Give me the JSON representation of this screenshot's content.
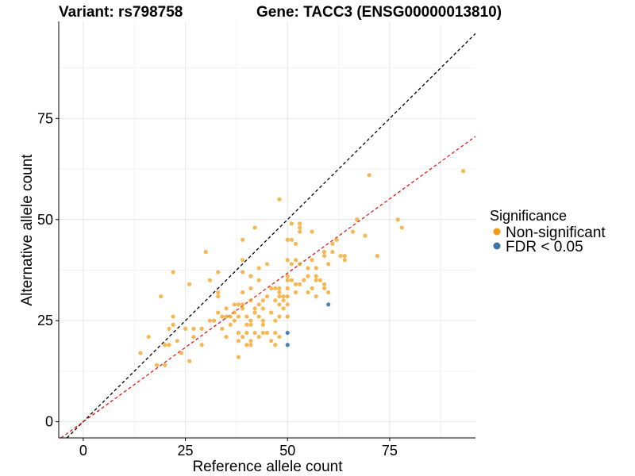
{
  "titles": {
    "variant": "Variant: rs798758",
    "gene": "Gene: TACC3 (ENSG00000013810)"
  },
  "legend": {
    "title": "Significance",
    "items": [
      {
        "label": "Non-significant",
        "color": "#f39c12"
      },
      {
        "label": "FDR < 0.05",
        "color": "#3d74a8"
      }
    ]
  },
  "chart_data": {
    "type": "scatter",
    "xlabel": "Reference allele count",
    "ylabel": "Alternative allele count",
    "xlim": [
      -6,
      96
    ],
    "ylim": [
      -4,
      99
    ],
    "xticks": [
      0,
      25,
      50,
      75
    ],
    "yticks": [
      0,
      25,
      50,
      75
    ],
    "grid": true,
    "legend_position": "right",
    "reference_lines": [
      {
        "name": "identity",
        "slope": 1,
        "intercept": 0,
        "color": "#000000",
        "style": "dashed"
      },
      {
        "name": "fit",
        "slope": 0.735,
        "intercept": 0,
        "color": "#e41a1c",
        "style": "dashed"
      }
    ],
    "series": [
      {
        "name": "Non-significant",
        "color": "#f39c12",
        "points": [
          [
            14,
            17
          ],
          [
            16,
            21
          ],
          [
            18,
            14
          ],
          [
            19,
            31
          ],
          [
            20,
            19
          ],
          [
            21,
            19
          ],
          [
            20,
            14
          ],
          [
            21,
            23
          ],
          [
            22,
            24
          ],
          [
            22,
            37
          ],
          [
            22,
            26
          ],
          [
            23,
            20
          ],
          [
            24,
            17
          ],
          [
            25,
            23
          ],
          [
            26,
            34
          ],
          [
            26,
            15
          ],
          [
            27,
            23
          ],
          [
            27,
            21
          ],
          [
            29,
            23
          ],
          [
            29,
            19
          ],
          [
            30,
            42
          ],
          [
            31,
            25
          ],
          [
            31,
            35
          ],
          [
            32,
            25
          ],
          [
            33,
            27
          ],
          [
            33,
            31
          ],
          [
            33,
            32
          ],
          [
            33,
            37
          ],
          [
            34,
            23
          ],
          [
            34,
            26
          ],
          [
            35,
            28
          ],
          [
            35,
            26
          ],
          [
            35,
            21
          ],
          [
            36,
            24
          ],
          [
            36,
            26
          ],
          [
            37,
            29
          ],
          [
            37,
            27
          ],
          [
            37,
            25
          ],
          [
            38,
            26
          ],
          [
            38,
            29
          ],
          [
            38,
            20
          ],
          [
            38,
            22
          ],
          [
            38,
            16
          ],
          [
            39,
            21
          ],
          [
            39,
            45
          ],
          [
            39,
            37
          ],
          [
            39,
            40
          ],
          [
            39,
            28
          ],
          [
            39,
            29
          ],
          [
            39,
            32
          ],
          [
            40,
            22
          ],
          [
            40,
            19
          ],
          [
            40,
            24
          ],
          [
            40,
            26
          ],
          [
            41,
            30
          ],
          [
            41,
            36
          ],
          [
            41,
            33
          ],
          [
            41,
            25
          ],
          [
            41,
            24
          ],
          [
            41,
            19
          ],
          [
            41,
            20
          ],
          [
            42,
            48
          ],
          [
            42,
            27
          ],
          [
            42,
            22
          ],
          [
            42,
            28
          ],
          [
            43,
            26
          ],
          [
            43,
            21
          ],
          [
            43,
            29
          ],
          [
            43,
            38
          ],
          [
            43,
            35
          ],
          [
            44,
            22
          ],
          [
            44,
            25
          ],
          [
            44,
            30
          ],
          [
            44,
            28
          ],
          [
            44,
            24
          ],
          [
            45,
            22
          ],
          [
            45,
            39
          ],
          [
            45,
            31
          ],
          [
            46,
            33
          ],
          [
            46,
            27
          ],
          [
            46,
            20
          ],
          [
            47,
            19
          ],
          [
            47,
            25
          ],
          [
            47,
            22
          ],
          [
            47,
            30
          ],
          [
            47,
            33
          ],
          [
            48,
            55
          ],
          [
            48,
            32
          ],
          [
            48,
            29
          ],
          [
            48,
            33
          ],
          [
            48,
            31
          ],
          [
            48,
            26
          ],
          [
            48,
            21
          ],
          [
            49,
            31
          ],
          [
            49,
            30
          ],
          [
            49,
            28
          ],
          [
            50,
            45
          ],
          [
            50,
            40
          ],
          [
            50,
            36
          ],
          [
            50,
            35
          ],
          [
            50,
            31
          ],
          [
            50,
            33
          ],
          [
            50,
            29
          ],
          [
            50,
            26
          ],
          [
            51,
            49
          ],
          [
            51,
            45
          ],
          [
            51,
            39
          ],
          [
            51,
            35
          ],
          [
            52,
            44
          ],
          [
            52,
            32
          ],
          [
            52,
            34
          ],
          [
            52,
            40
          ],
          [
            53,
            49
          ],
          [
            53,
            48
          ],
          [
            53,
            47
          ],
          [
            53,
            39
          ],
          [
            53,
            34
          ],
          [
            54,
            35
          ],
          [
            55,
            38
          ],
          [
            55,
            32
          ],
          [
            55,
            36
          ],
          [
            56,
            47
          ],
          [
            56,
            40
          ],
          [
            56,
            33
          ],
          [
            57,
            38
          ],
          [
            57,
            36
          ],
          [
            57,
            35
          ],
          [
            57,
            31
          ],
          [
            58,
            35
          ],
          [
            59,
            42
          ],
          [
            59,
            34
          ],
          [
            59,
            33
          ],
          [
            59,
            41
          ],
          [
            60,
            39
          ],
          [
            60,
            32
          ],
          [
            61,
            44
          ],
          [
            61,
            42
          ],
          [
            62,
            45
          ],
          [
            63,
            41
          ],
          [
            64,
            41
          ],
          [
            64,
            40
          ],
          [
            66,
            47
          ],
          [
            67,
            50
          ],
          [
            69,
            46
          ],
          [
            70,
            61
          ],
          [
            72,
            41
          ],
          [
            77,
            50
          ],
          [
            78,
            48
          ],
          [
            93,
            62
          ]
        ]
      },
      {
        "name": "FDR < 0.05",
        "color": "#3d74a8",
        "points": [
          [
            50,
            22
          ],
          [
            50,
            19
          ],
          [
            60,
            29
          ]
        ]
      }
    ]
  }
}
